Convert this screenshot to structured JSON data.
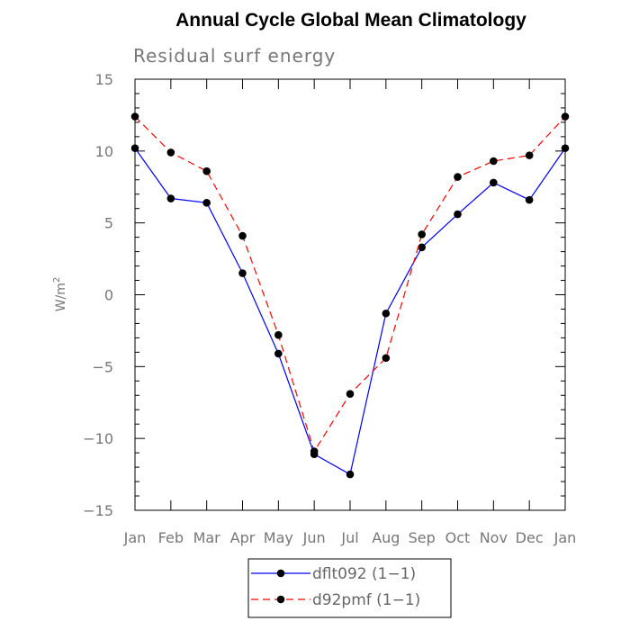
{
  "chart_data": {
    "type": "line",
    "title": "Annual Cycle Global Mean Climatology",
    "subtitle": "Residual surf energy",
    "ylabel": "W/m",
    "ylabel_sup": "2",
    "xlabel": "",
    "ylim": [
      -15,
      15
    ],
    "yticks": [
      15,
      10,
      5,
      0,
      -5,
      -10,
      -15
    ],
    "ytick_labels": [
      "15",
      "10",
      "5",
      "0",
      "−5",
      "−10",
      "−15"
    ],
    "categories": [
      "Jan",
      "Feb",
      "Mar",
      "Apr",
      "May",
      "Jun",
      "Jul",
      "Aug",
      "Sep",
      "Oct",
      "Nov",
      "Dec",
      "Jan"
    ],
    "grid": false,
    "legend_position": "bottom",
    "series": [
      {
        "name": "dflt092 (1−1)",
        "color": "#0000ff",
        "dash": "solid",
        "values": [
          10.2,
          6.7,
          6.4,
          1.5,
          -4.1,
          -11.1,
          -12.5,
          -1.3,
          3.3,
          5.6,
          7.8,
          6.6,
          10.2
        ]
      },
      {
        "name": "d92pmf (1−1)",
        "color": "#ff0000",
        "dash": "dashed",
        "values": [
          12.4,
          9.9,
          8.6,
          4.1,
          -2.8,
          -10.9,
          -6.9,
          -4.4,
          4.2,
          8.2,
          9.3,
          9.7,
          12.4
        ]
      }
    ]
  }
}
